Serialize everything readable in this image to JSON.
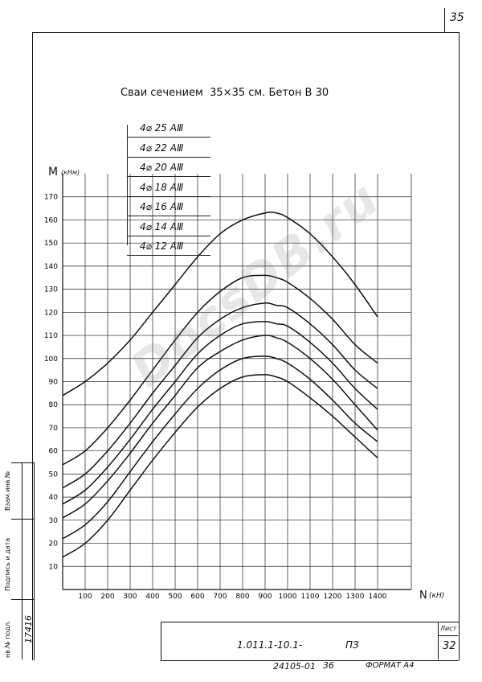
{
  "page_number": "35",
  "sheet_label": "Лист",
  "sheet_number": "32",
  "doc_code": "1.011.1-10.1-",
  "doc_suffix": "ПЗ",
  "footer_code": "24105-01",
  "footer_num": "36",
  "format_label": "ФОРМАТ А4",
  "side_labels": {
    "inv": "нв.№ подл.",
    "sign_date": "Подпись и дата",
    "replace": "Взам.инв.№",
    "inv_number": "17416"
  },
  "watermark": "DocsDB.ru",
  "chart_data": {
    "type": "line",
    "title": "Сваи сечением  35×35 см. Бетон В 30",
    "ylabel": "M",
    "ylabel_unit": "(кНм)",
    "xlabel": "N",
    "xlabel_unit": "(кН)",
    "x_ticks": [
      100,
      200,
      300,
      400,
      500,
      600,
      700,
      800,
      900,
      1000,
      1100,
      1200,
      1300,
      1400
    ],
    "y_ticks": [
      10,
      20,
      30,
      40,
      50,
      60,
      70,
      80,
      90,
      100,
      110,
      120,
      130,
      140,
      150,
      160,
      170
    ],
    "xlim": [
      0,
      1550
    ],
    "ylim": [
      0,
      180
    ],
    "grid": true,
    "legend_position": "top-left",
    "series": [
      {
        "name": "4⌀ 25 АⅢ",
        "x": [
          0,
          100,
          200,
          300,
          400,
          500,
          600,
          700,
          800,
          900,
          950,
          1000,
          1100,
          1200,
          1300,
          1400
        ],
        "values": [
          84,
          90,
          98,
          108,
          120,
          132,
          144,
          154,
          160,
          163,
          163,
          161,
          154,
          144,
          132,
          118
        ]
      },
      {
        "name": "4⌀ 22 АⅢ",
        "x": [
          0,
          100,
          200,
          300,
          400,
          500,
          600,
          700,
          800,
          900,
          950,
          1000,
          1100,
          1200,
          1300,
          1400
        ],
        "values": [
          54,
          60,
          70,
          82,
          95,
          108,
          120,
          129,
          135,
          136,
          135,
          133,
          126,
          117,
          106,
          98
        ]
      },
      {
        "name": "4⌀ 20 АⅢ",
        "x": [
          0,
          100,
          200,
          300,
          400,
          500,
          600,
          700,
          800,
          900,
          950,
          1000,
          1100,
          1200,
          1300,
          1400
        ],
        "values": [
          44,
          50,
          60,
          72,
          85,
          97,
          109,
          117,
          122,
          124,
          123,
          122,
          115,
          106,
          95,
          87
        ]
      },
      {
        "name": "4⌀ 18 АⅢ",
        "x": [
          0,
          100,
          200,
          300,
          400,
          500,
          600,
          700,
          800,
          900,
          950,
          1000,
          1100,
          1200,
          1300,
          1400
        ],
        "values": [
          37,
          43,
          53,
          65,
          78,
          90,
          102,
          110,
          115,
          116,
          115,
          114,
          107,
          98,
          87,
          78
        ]
      },
      {
        "name": "4⌀ 16 АⅢ",
        "x": [
          0,
          100,
          200,
          300,
          400,
          500,
          600,
          700,
          800,
          900,
          950,
          1000,
          1100,
          1200,
          1300,
          1400
        ],
        "values": [
          31,
          37,
          47,
          59,
          72,
          84,
          96,
          103,
          108,
          110,
          109,
          107,
          100,
          91,
          80,
          69
        ]
      },
      {
        "name": "4⌀ 14 АⅢ",
        "x": [
          0,
          100,
          200,
          300,
          400,
          500,
          600,
          700,
          800,
          900,
          950,
          1000,
          1100,
          1200,
          1300,
          1400
        ],
        "values": [
          22,
          28,
          38,
          51,
          64,
          76,
          87,
          95,
          100,
          101,
          100,
          98,
          91,
          82,
          72,
          64
        ]
      },
      {
        "name": "4⌀ 12 АⅢ",
        "x": [
          0,
          100,
          200,
          300,
          400,
          500,
          600,
          700,
          800,
          900,
          950,
          1000,
          1100,
          1200,
          1300,
          1400
        ],
        "values": [
          14,
          20,
          30,
          43,
          56,
          68,
          79,
          87,
          92,
          93,
          92,
          90,
          83,
          75,
          66,
          57
        ]
      }
    ]
  }
}
